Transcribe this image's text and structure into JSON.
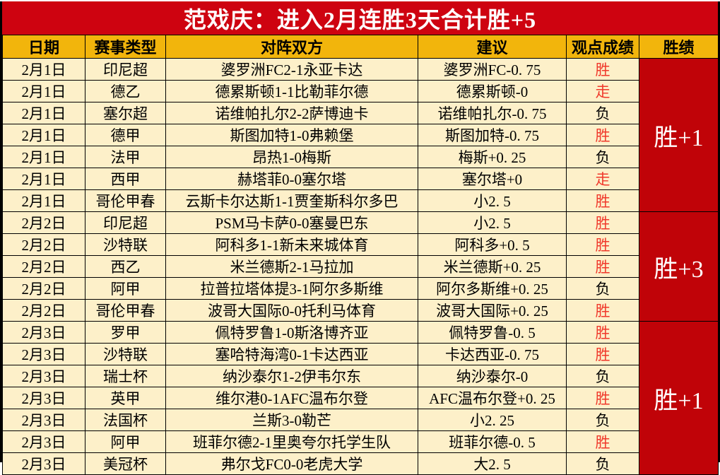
{
  "title": "范戏庆：进入2月连胜3天合计胜+5",
  "colors": {
    "banner_bg": "#CE0310",
    "banner_text": "#FFFFFF",
    "header_bg": "#F2B50C",
    "header_text": "#000000",
    "cell_bg": "#FDF0C9",
    "cell_text": "#000000",
    "win_text": "#F0382A",
    "record_bg": "#C00308",
    "record_text": "#FFFFFF",
    "border": "#000000"
  },
  "table": {
    "headers": [
      "日期",
      "赛事类型",
      "对阵双方",
      "建议",
      "观点成绩",
      "胜绩"
    ],
    "rows": [
      {
        "date": "2月1日",
        "league": "印尼超",
        "match": "婆罗洲FC2-1永亚卡达",
        "advice": "婆罗洲FC-0. 75",
        "result": "胜",
        "result_red": true
      },
      {
        "date": "2月1日",
        "league": "德乙",
        "match": "德累斯顿1-1比勒菲尔德",
        "advice": "德累斯顿-0",
        "result": "走",
        "result_red": true
      },
      {
        "date": "2月1日",
        "league": "塞尔超",
        "match": "诺维帕扎尔2-2萨博迪卡",
        "advice": "诺维帕扎尔-0. 75",
        "result": "负",
        "result_red": false
      },
      {
        "date": "2月1日",
        "league": "德甲",
        "match": "斯图加特1-0弗赖堡",
        "advice": "斯图加特-0. 75",
        "result": "胜",
        "result_red": true
      },
      {
        "date": "2月1日",
        "league": "法甲",
        "match": "昂热1-0梅斯",
        "advice": "梅斯+0. 25",
        "result": "负",
        "result_red": false
      },
      {
        "date": "2月1日",
        "league": "西甲",
        "match": "赫塔菲0-0塞尔塔",
        "advice": "塞尔塔+0",
        "result": "走",
        "result_red": true
      },
      {
        "date": "2月1日",
        "league": "哥伦甲春",
        "match": "云斯卡尔达斯1-1贾奎斯科尔多巴",
        "advice": "小2. 5",
        "result": "胜",
        "result_red": true
      },
      {
        "date": "2月2日",
        "league": "印尼超",
        "match": "PSM马卡萨0-0塞曼巴东",
        "advice": "小2. 5",
        "result": "胜",
        "result_red": true
      },
      {
        "date": "2月2日",
        "league": "沙特联",
        "match": "阿科多1-1新未来城体育",
        "advice": "阿科多+0. 5",
        "result": "胜",
        "result_red": true
      },
      {
        "date": "2月2日",
        "league": "西乙",
        "match": "米兰德斯2-1马拉加",
        "advice": "米兰德斯+0. 25",
        "result": "胜",
        "result_red": true
      },
      {
        "date": "2月2日",
        "league": "阿甲",
        "match": "拉普拉塔体提3-1阿尔多斯维",
        "advice": "阿尔多斯维+0. 25",
        "result": "负",
        "result_red": false
      },
      {
        "date": "2月2日",
        "league": "哥伦甲春",
        "match": "波哥大国际0-0托利马体育",
        "advice": "波哥大国际+0. 25",
        "result": "胜",
        "result_red": true
      },
      {
        "date": "2月3日",
        "league": "罗甲",
        "match": "佩特罗鲁1-0斯洛博齐亚",
        "advice": "佩特罗鲁-0. 5",
        "result": "胜",
        "result_red": true
      },
      {
        "date": "2月3日",
        "league": "沙特联",
        "match": "塞哈特海湾0-1卡达西亚",
        "advice": "卡达西亚-0. 75",
        "result": "胜",
        "result_red": true
      },
      {
        "date": "2月3日",
        "league": "瑞士杯",
        "match": "纳沙泰尔1-2伊韦尔东",
        "advice": "纳沙泰尔-0",
        "result": "负",
        "result_red": false
      },
      {
        "date": "2月3日",
        "league": "英甲",
        "match": "维尔港0-1AFC温布尔登",
        "advice": "AFC温布尔登+0. 25",
        "result": "胜",
        "result_red": true
      },
      {
        "date": "2月3日",
        "league": "法国杯",
        "match": "兰斯3-0勒芒",
        "advice": "小2. 25",
        "result": "负",
        "result_red": false
      },
      {
        "date": "2月3日",
        "league": "阿甲",
        "match": "班菲尔德2-1里奥夸尔托学生队",
        "advice": "班菲尔德-0. 5",
        "result": "胜",
        "result_red": true
      },
      {
        "date": "2月3日",
        "league": "美冠杯",
        "match": "弗尔戈FC0-0老虎大学",
        "advice": "大2. 5",
        "result": "负",
        "result_red": false
      }
    ],
    "groups": [
      {
        "rows": 7,
        "record": "胜+1"
      },
      {
        "rows": 5,
        "record": "胜+3"
      },
      {
        "rows": 7,
        "record": "胜+1"
      }
    ]
  }
}
